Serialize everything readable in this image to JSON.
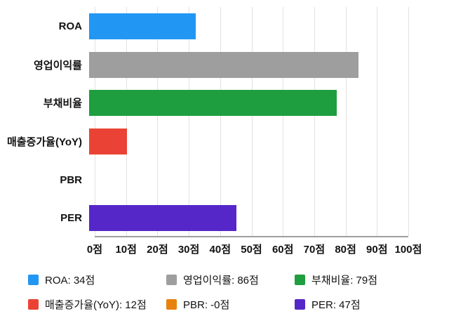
{
  "chart_data": {
    "type": "bar",
    "orientation": "horizontal",
    "title": "",
    "xlabel": "",
    "ylabel": "",
    "xlim": [
      0,
      100
    ],
    "grid": true,
    "legend_position": "bottom",
    "categories": [
      "ROA",
      "영업이익률",
      "부채비율",
      "매출증가율(YoY)",
      "PBR",
      "PER"
    ],
    "values": [
      34,
      86,
      79,
      12,
      0,
      47
    ],
    "display_values": [
      "34점",
      "86점",
      "79점",
      "12점",
      "-0점",
      "47점"
    ],
    "colors": [
      "#2196F3",
      "#9E9E9E",
      "#1E9E3E",
      "#EA4335",
      "#E8820E",
      "#5627C8"
    ],
    "x_ticks": [
      {
        "value": 0,
        "label": "0점"
      },
      {
        "value": 10,
        "label": "10점"
      },
      {
        "value": 20,
        "label": "20점"
      },
      {
        "value": 30,
        "label": "30점"
      },
      {
        "value": 40,
        "label": "40점"
      },
      {
        "value": 50,
        "label": "50점"
      },
      {
        "value": 60,
        "label": "60점"
      },
      {
        "value": 70,
        "label": "70점"
      },
      {
        "value": 80,
        "label": "80점"
      },
      {
        "value": 90,
        "label": "90점"
      },
      {
        "value": 100,
        "label": "100점"
      }
    ],
    "legend": [
      {
        "label": "ROA: 34점"
      },
      {
        "label": "영업이익률: 86점"
      },
      {
        "label": "부채비율: 79점"
      },
      {
        "label": "매출증가율(YoY): 12점"
      },
      {
        "label": "PBR: -0점"
      },
      {
        "label": "PER: 47점"
      }
    ]
  }
}
